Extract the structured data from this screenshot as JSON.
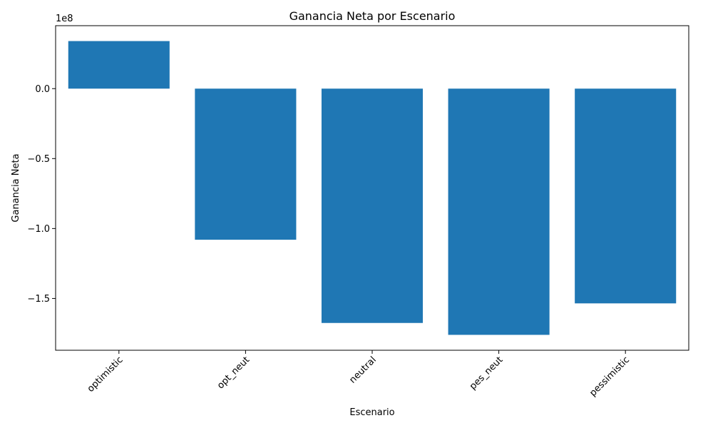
{
  "chart_data": {
    "type": "bar",
    "title": "Ganancia Neta por Escenario",
    "xlabel": "Escenario",
    "ylabel": "Ganancia Neta",
    "offset_label": "1e8",
    "categories": [
      "optimistic",
      "opt_neut",
      "neutral",
      "pes_neut",
      "pessimistic"
    ],
    "values": [
      34000000,
      -108000000,
      -167500000,
      -176000000,
      -153500000
    ],
    "ylim": [
      -187000000,
      45000000
    ],
    "yticks": [
      0,
      -50000000,
      -100000000,
      -150000000
    ],
    "ytick_labels": [
      "0.0",
      "−0.5",
      "−1.0",
      "−1.5"
    ],
    "bar_color": "#1f77b4",
    "grid": false,
    "legend": false
  }
}
